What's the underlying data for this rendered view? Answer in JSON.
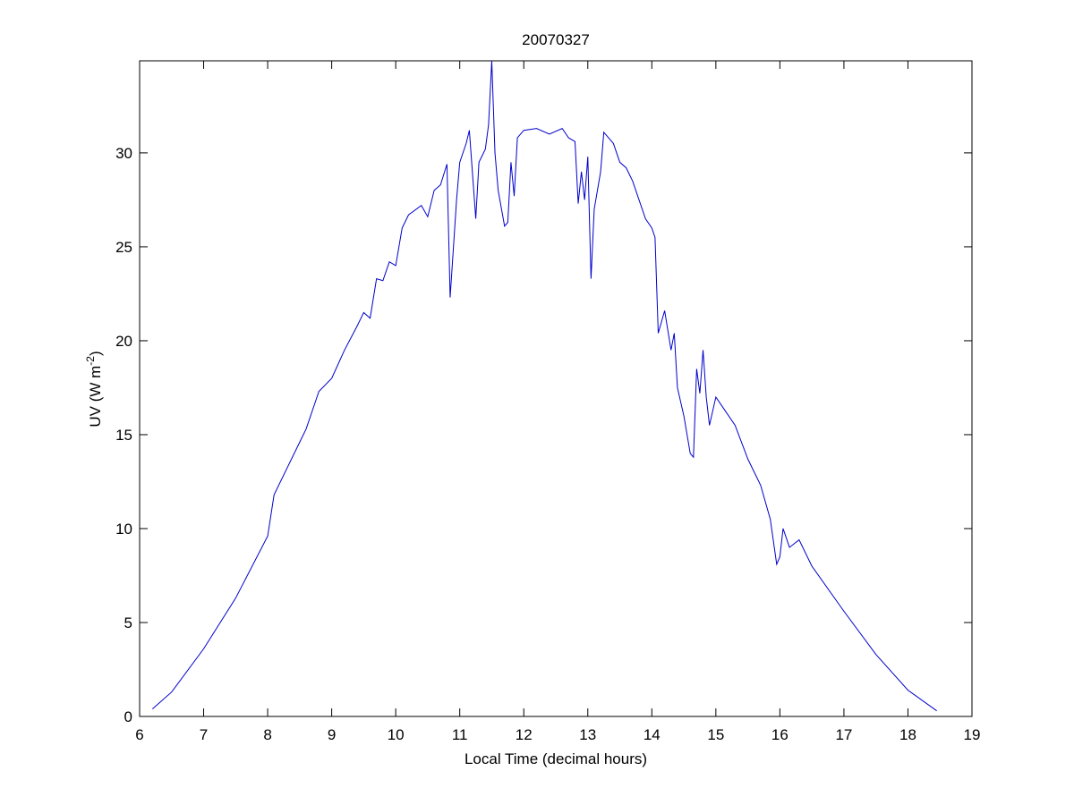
{
  "chart_data": {
    "type": "line",
    "title": "20070327",
    "xlabel": "Local Time (decimal hours)",
    "ylabel_parts": [
      "UV (W m",
      "-2",
      ")"
    ],
    "xlim": [
      6,
      19
    ],
    "ylim": [
      0,
      34.9
    ],
    "xticks": [
      6,
      7,
      8,
      9,
      10,
      11,
      12,
      13,
      14,
      15,
      16,
      17,
      18,
      19
    ],
    "yticks": [
      0,
      5,
      10,
      15,
      20,
      25,
      30
    ],
    "grid": false,
    "series": [
      {
        "color": "#0000cc",
        "x": [
          6.2,
          6.5,
          7.0,
          7.5,
          8.0,
          8.1,
          8.5,
          8.6,
          8.8,
          9.0,
          9.2,
          9.4,
          9.5,
          9.6,
          9.7,
          9.8,
          9.9,
          10.0,
          10.1,
          10.2,
          10.4,
          10.5,
          10.6,
          10.7,
          10.8,
          10.85,
          10.95,
          11.0,
          11.1,
          11.15,
          11.25,
          11.3,
          11.4,
          11.45,
          11.5,
          11.55,
          11.6,
          11.7,
          11.75,
          11.8,
          11.85,
          11.9,
          12.0,
          12.2,
          12.4,
          12.6,
          12.7,
          12.8,
          12.85,
          12.9,
          12.95,
          13.0,
          13.05,
          13.1,
          13.2,
          13.25,
          13.4,
          13.5,
          13.6,
          13.7,
          13.9,
          14.0,
          14.05,
          14.1,
          14.2,
          14.3,
          14.35,
          14.4,
          14.5,
          14.6,
          14.65,
          14.7,
          14.75,
          14.8,
          14.85,
          14.9,
          15.0,
          15.1,
          15.3,
          15.5,
          15.7,
          15.85,
          15.95,
          16.0,
          16.05,
          16.15,
          16.3,
          16.5,
          17.0,
          17.5,
          18.0,
          18.45
        ],
        "values": [
          0.4,
          1.3,
          3.6,
          6.3,
          9.6,
          11.8,
          14.6,
          15.3,
          17.3,
          18.0,
          19.5,
          20.8,
          21.5,
          21.2,
          23.3,
          23.2,
          24.2,
          24.0,
          26.0,
          26.7,
          27.2,
          26.6,
          28.0,
          28.3,
          29.4,
          22.3,
          27.5,
          29.5,
          30.5,
          31.2,
          26.5,
          29.5,
          30.2,
          31.5,
          34.9,
          30.0,
          28.0,
          26.1,
          26.3,
          29.5,
          27.7,
          30.8,
          31.2,
          31.3,
          31.0,
          31.3,
          30.8,
          30.6,
          27.3,
          29.0,
          27.5,
          29.8,
          23.3,
          27.0,
          29.0,
          31.1,
          30.5,
          29.5,
          29.2,
          28.5,
          26.5,
          26.0,
          25.5,
          20.4,
          21.6,
          19.5,
          20.4,
          17.5,
          16.0,
          14.0,
          13.8,
          18.5,
          17.2,
          19.5,
          17.0,
          15.5,
          17.0,
          16.5,
          15.5,
          13.7,
          12.3,
          10.5,
          8.1,
          8.5,
          10.0,
          9.0,
          9.4,
          8.0,
          5.6,
          3.3,
          1.4,
          0.3
        ]
      }
    ]
  }
}
